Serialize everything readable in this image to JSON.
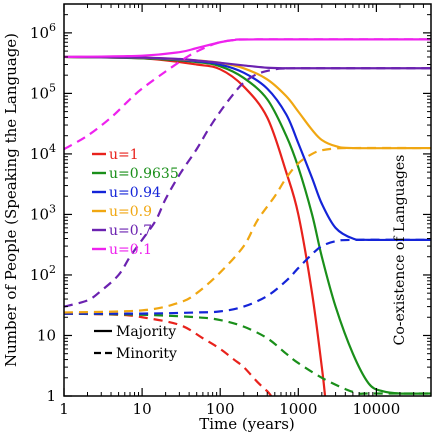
{
  "chart_data": {
    "type": "line",
    "title": "",
    "xlabel": "Time (years)",
    "ylabel": "Number of People (Speaking the Language)",
    "xscale": "log",
    "yscale": "log",
    "xlim": [
      1,
      50000
    ],
    "ylim": [
      1,
      3000000
    ],
    "grid": false,
    "legend_placement": "center-left",
    "x_ticks": [
      {
        "value": 1,
        "label": "1"
      },
      {
        "value": 10,
        "label": "10"
      },
      {
        "value": 100,
        "label": "100"
      },
      {
        "value": 1000,
        "label": "1000"
      },
      {
        "value": 10000,
        "label": "10000"
      }
    ],
    "y_ticks": [
      {
        "value": 1,
        "base": "1",
        "exp": ""
      },
      {
        "value": 10,
        "base": "10",
        "exp": ""
      },
      {
        "value": 100,
        "base": "10",
        "exp": "2"
      },
      {
        "value": 1000,
        "base": "10",
        "exp": "3"
      },
      {
        "value": 10000,
        "base": "10",
        "exp": "4"
      },
      {
        "value": 100000,
        "base": "10",
        "exp": "5"
      },
      {
        "value": 1000000,
        "base": "10",
        "exp": "6"
      }
    ],
    "series": [
      {
        "name": "u=1",
        "color": "#e8221c",
        "majority": [
          [
            1,
            400000
          ],
          [
            10,
            380000
          ],
          [
            50,
            300000
          ],
          [
            100,
            250000
          ],
          [
            200,
            130000
          ],
          [
            400,
            40000
          ],
          [
            700,
            5000
          ],
          [
            1000,
            1000
          ],
          [
            1500,
            50
          ],
          [
            2000,
            3
          ],
          [
            2200,
            1
          ]
        ],
        "minority": [
          [
            1,
            23
          ],
          [
            5,
            22
          ],
          [
            10,
            20
          ],
          [
            30,
            15
          ],
          [
            60,
            9
          ],
          [
            100,
            6
          ],
          [
            150,
            4
          ],
          [
            200,
            3
          ],
          [
            300,
            1.7
          ],
          [
            400,
            1.2
          ],
          [
            450,
            1
          ]
        ]
      },
      {
        "name": "u=0.9635",
        "color": "#1a8f1a",
        "majority": [
          [
            1,
            400000
          ],
          [
            10,
            380000
          ],
          [
            50,
            330000
          ],
          [
            100,
            280000
          ],
          [
            200,
            180000
          ],
          [
            400,
            80000
          ],
          [
            700,
            20000
          ],
          [
            1000,
            6000
          ],
          [
            1500,
            1000
          ],
          [
            2000,
            200
          ],
          [
            3000,
            30
          ],
          [
            5000,
            5
          ],
          [
            8000,
            1.6
          ],
          [
            12000,
            1.2
          ],
          [
            20000,
            1.1
          ],
          [
            50000,
            1.1
          ]
        ],
        "minority": [
          [
            1,
            23
          ],
          [
            10,
            22
          ],
          [
            50,
            20
          ],
          [
            100,
            18
          ],
          [
            200,
            14
          ],
          [
            400,
            9
          ],
          [
            700,
            5
          ],
          [
            1000,
            3.5
          ],
          [
            2000,
            2
          ],
          [
            4000,
            1.3
          ],
          [
            6000,
            1.1
          ],
          [
            8000,
            1.1
          ],
          [
            50000,
            1.1
          ]
        ]
      },
      {
        "name": "u=0.94",
        "color": "#1424d8",
        "majority": [
          [
            1,
            400000
          ],
          [
            10,
            390000
          ],
          [
            50,
            340000
          ],
          [
            100,
            300000
          ],
          [
            200,
            220000
          ],
          [
            400,
            120000
          ],
          [
            700,
            45000
          ],
          [
            1000,
            15000
          ],
          [
            1500,
            4000
          ],
          [
            2000,
            1500
          ],
          [
            3000,
            600
          ],
          [
            5000,
            400
          ],
          [
            8000,
            380
          ],
          [
            50000,
            380
          ]
        ],
        "minority": [
          [
            1,
            23
          ],
          [
            10,
            23
          ],
          [
            50,
            24
          ],
          [
            100,
            25
          ],
          [
            200,
            30
          ],
          [
            400,
            45
          ],
          [
            700,
            80
          ],
          [
            1000,
            130
          ],
          [
            1500,
            220
          ],
          [
            2000,
            300
          ],
          [
            3000,
            360
          ],
          [
            5000,
            380
          ],
          [
            50000,
            380
          ]
        ]
      },
      {
        "name": "u=0.9",
        "color": "#f0a712",
        "majority": [
          [
            1,
            400000
          ],
          [
            10,
            390000
          ],
          [
            50,
            350000
          ],
          [
            100,
            320000
          ],
          [
            200,
            260000
          ],
          [
            400,
            170000
          ],
          [
            700,
            90000
          ],
          [
            1000,
            50000
          ],
          [
            1500,
            25000
          ],
          [
            2000,
            17000
          ],
          [
            3000,
            13500
          ],
          [
            5000,
            12500
          ],
          [
            50000,
            12500
          ]
        ],
        "minority": [
          [
            1,
            24
          ],
          [
            10,
            26
          ],
          [
            30,
            35
          ],
          [
            50,
            50
          ],
          [
            100,
            110
          ],
          [
            200,
            300
          ],
          [
            300,
            800
          ],
          [
            500,
            2000
          ],
          [
            700,
            4000
          ],
          [
            1000,
            7000
          ],
          [
            1500,
            10000
          ],
          [
            2000,
            11500
          ],
          [
            3000,
            12300
          ],
          [
            5000,
            12500
          ],
          [
            50000,
            12500
          ]
        ]
      },
      {
        "name": "u=0.7",
        "color": "#6b22b0",
        "majority": [
          [
            1,
            400000
          ],
          [
            10,
            390000
          ],
          [
            30,
            370000
          ],
          [
            50,
            350000
          ],
          [
            100,
            320000
          ],
          [
            200,
            290000
          ],
          [
            400,
            265000
          ],
          [
            700,
            260000
          ],
          [
            1000,
            260000
          ],
          [
            50000,
            260000
          ]
        ],
        "minority": [
          [
            1,
            30
          ],
          [
            2,
            38
          ],
          [
            3,
            55
          ],
          [
            5,
            100
          ],
          [
            7,
            200
          ],
          [
            10,
            380
          ],
          [
            15,
            800
          ],
          [
            20,
            1800
          ],
          [
            30,
            4500
          ],
          [
            50,
            12000
          ],
          [
            70,
            25000
          ],
          [
            100,
            50000
          ],
          [
            150,
            100000
          ],
          [
            200,
            150000
          ],
          [
            300,
            210000
          ],
          [
            500,
            250000
          ],
          [
            700,
            258000
          ],
          [
            1000,
            260000
          ],
          [
            50000,
            260000
          ]
        ]
      },
      {
        "name": "u=0.1",
        "color": "#ee22ee",
        "majority": [
          [
            1,
            400000
          ],
          [
            10,
            420000
          ],
          [
            30,
            480000
          ],
          [
            50,
            560000
          ],
          [
            100,
            700000
          ],
          [
            150,
            760000
          ],
          [
            300,
            780000
          ],
          [
            50000,
            780000
          ]
        ],
        "minority": [
          [
            1,
            12000
          ],
          [
            2,
            20000
          ],
          [
            4,
            40000
          ],
          [
            7,
            80000
          ],
          [
            10,
            120000
          ],
          [
            20,
            230000
          ],
          [
            40,
            420000
          ],
          [
            70,
            600000
          ],
          [
            100,
            700000
          ],
          [
            150,
            760000
          ],
          [
            300,
            780000
          ],
          [
            50000,
            780000
          ]
        ]
      }
    ],
    "style_legend": [
      {
        "label": "Majority",
        "dash": "solid"
      },
      {
        "label": "Minority",
        "dash": "dashed"
      }
    ],
    "annotation": "Co-existence of Languages"
  }
}
